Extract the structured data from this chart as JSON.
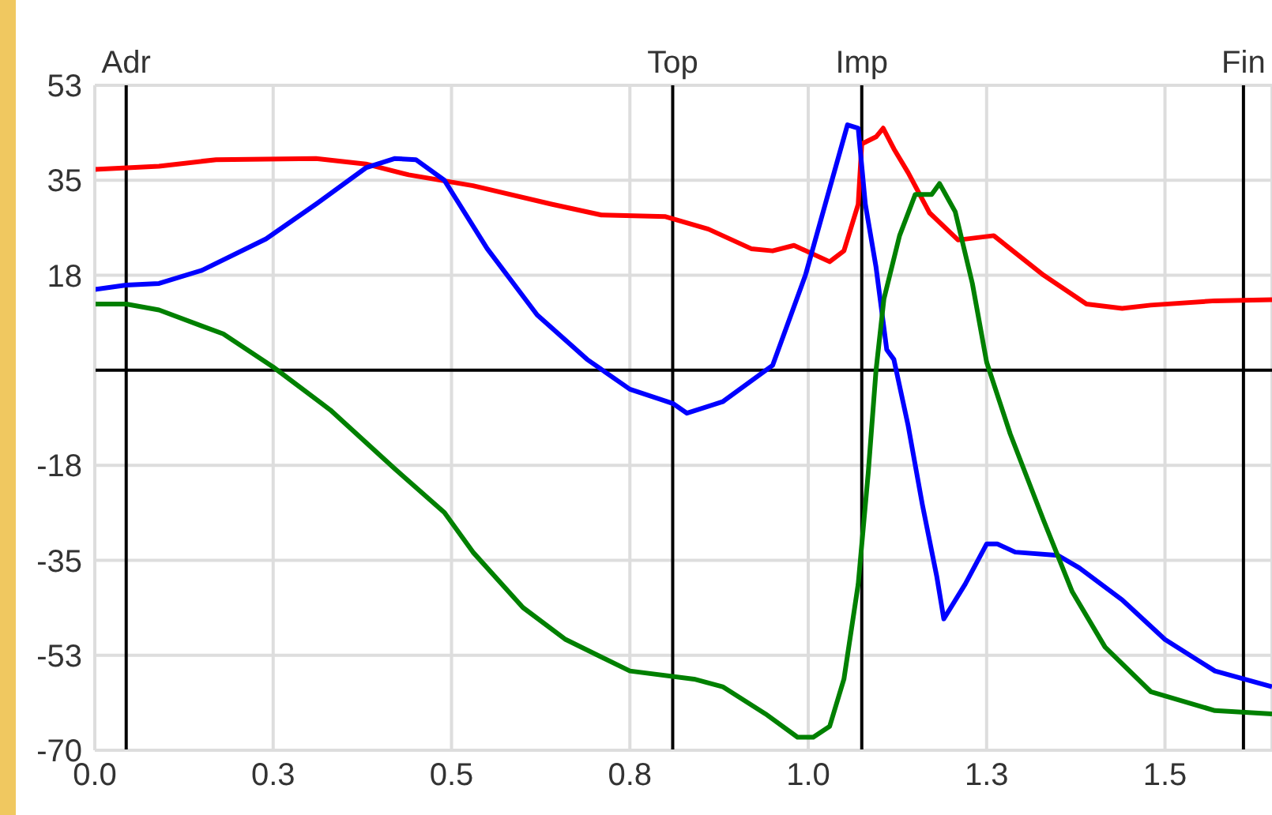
{
  "chart_data": {
    "type": "line",
    "xlim": [
      0,
      1.65
    ],
    "xticks": [
      {
        "value": 0,
        "label": "0.0"
      },
      {
        "value": 0.25,
        "label": "0.3"
      },
      {
        "value": 0.5,
        "label": "0.5"
      },
      {
        "value": 0.75,
        "label": "0.8"
      },
      {
        "value": 1.0,
        "label": "1.0"
      },
      {
        "value": 1.25,
        "label": "1.3"
      },
      {
        "value": 1.5,
        "label": "1.5"
      }
    ],
    "ylim": [
      -70,
      52.5
    ],
    "yticks": [
      {
        "value": 52.5,
        "label": "53"
      },
      {
        "value": 35,
        "label": "35"
      },
      {
        "value": 17.5,
        "label": "18"
      },
      {
        "value": -17.5,
        "label": "-18"
      },
      {
        "value": -35,
        "label": "-35"
      },
      {
        "value": -52.5,
        "label": "-53"
      },
      {
        "value": -70,
        "label": "-70"
      }
    ],
    "grid": true,
    "marker": "none",
    "line_style": "solid",
    "ref_lines": [
      {
        "axis": "x",
        "value": 0.044,
        "label": "Adr",
        "color": "#000000"
      },
      {
        "axis": "x",
        "value": 0.81,
        "label": "Top",
        "color": "#000000"
      },
      {
        "axis": "x",
        "value": 1.075,
        "label": "Imp",
        "color": "#000000"
      },
      {
        "axis": "x",
        "value": 1.61,
        "label": "Fin",
        "color": "#000000"
      },
      {
        "axis": "y",
        "value": 0,
        "color": "#000000"
      }
    ],
    "series": [
      {
        "color": "#ff0000",
        "x": [
          0,
          0.09,
          0.17,
          0.31,
          0.38,
          0.44,
          0.53,
          0.64,
          0.71,
          0.8,
          0.86,
          0.92,
          0.95,
          0.98,
          1.03,
          1.05,
          1.07,
          1.075,
          1.095,
          1.105,
          1.12,
          1.14,
          1.17,
          1.21,
          1.26,
          1.33,
          1.39,
          1.44,
          1.48,
          1.57,
          1.65
        ],
        "values": [
          37,
          37.6,
          38.8,
          39,
          38,
          36,
          34,
          30.6,
          28.6,
          28.3,
          26,
          22.4,
          22,
          23,
          20,
          22,
          30.6,
          41.7,
          43,
          44.6,
          40.8,
          36.4,
          29,
          24,
          24.8,
          17.5,
          12.2,
          11.4,
          12,
          12.8,
          13
        ]
      },
      {
        "color": "#0000ff",
        "x": [
          0,
          0.044,
          0.09,
          0.15,
          0.24,
          0.31,
          0.38,
          0.42,
          0.45,
          0.49,
          0.55,
          0.62,
          0.69,
          0.75,
          0.81,
          0.83,
          0.88,
          0.95,
          0.996,
          1.03,
          1.055,
          1.07,
          1.08,
          1.095,
          1.11,
          1.12,
          1.14,
          1.16,
          1.18,
          1.19,
          1.22,
          1.25,
          1.265,
          1.29,
          1.35,
          1.38,
          1.44,
          1.5,
          1.57,
          1.65
        ],
        "values": [
          14.9,
          15.7,
          16,
          18.4,
          24.2,
          30.6,
          37.3,
          39,
          38.8,
          35,
          22.4,
          10.2,
          2,
          -3.5,
          -6.1,
          -7.9,
          -5.8,
          0.9,
          17.5,
          33.5,
          45.2,
          44.6,
          30.6,
          19,
          3.8,
          2,
          -10.2,
          -24.8,
          -37.9,
          -45.8,
          -39.4,
          -32,
          -32,
          -33.5,
          -34.1,
          -36.4,
          -42.3,
          -49.6,
          -55.4,
          -58.3
        ]
      },
      {
        "color": "#008000",
        "x": [
          0,
          0.044,
          0.09,
          0.18,
          0.25,
          0.33,
          0.42,
          0.49,
          0.53,
          0.6,
          0.66,
          0.75,
          0.84,
          0.88,
          0.94,
          0.985,
          1.007,
          1.03,
          1.05,
          1.07,
          1.084,
          1.095,
          1.106,
          1.128,
          1.15,
          1.173,
          1.184,
          1.206,
          1.23,
          1.25,
          1.283,
          1.33,
          1.37,
          1.416,
          1.48,
          1.57,
          1.65
        ],
        "values": [
          12.2,
          12.2,
          11.1,
          6.7,
          0.6,
          -7.3,
          -18.1,
          -26.2,
          -33.5,
          -43.7,
          -49.6,
          -55.4,
          -56.9,
          -58.3,
          -63.3,
          -67.6,
          -67.6,
          -65.6,
          -56.9,
          -39.4,
          -19,
          0,
          13.1,
          24.8,
          32.4,
          32.4,
          34.4,
          29.2,
          16,
          1.5,
          -11.7,
          -27.7,
          -40.8,
          -51,
          -59.2,
          -62.7,
          -63.3
        ]
      }
    ]
  }
}
